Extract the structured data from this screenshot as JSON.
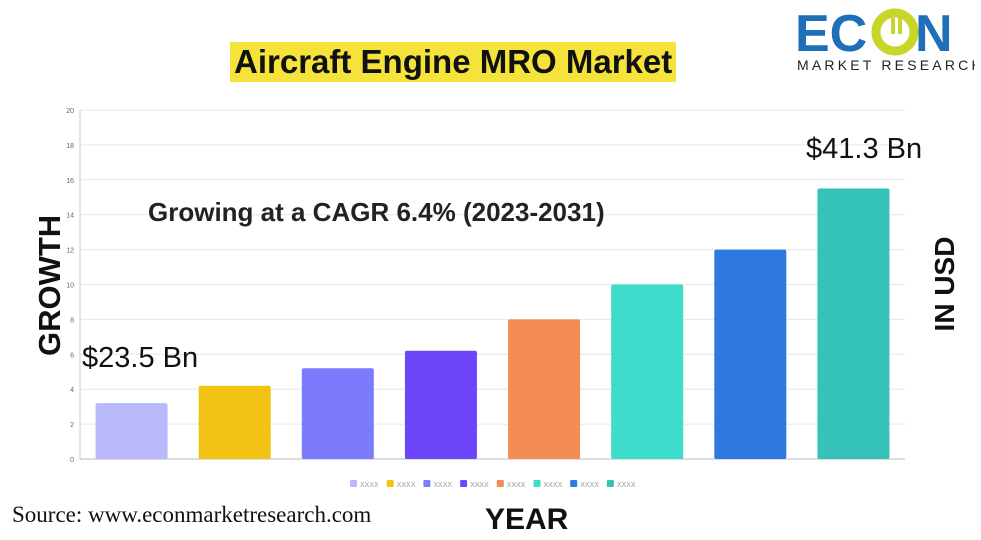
{
  "title": "Aircraft Engine MRO Market",
  "logo": {
    "text": "ECON",
    "subtext": "MARKET RESEARCH",
    "colors": {
      "primary": "#1e6fb8",
      "accent": "#c8d62b"
    }
  },
  "annotations": {
    "cagr": "Growing at a CAGR 6.4% (2023-2031)",
    "start_value": "$23.5 Bn",
    "end_value": "$41.3 Bn"
  },
  "source": "Source: www.econmarketresearch.com",
  "chart_data": {
    "type": "bar",
    "xlabel": "YEAR",
    "ylabel": "GROWTH",
    "unit_label": "IN USD",
    "ylim": [
      0,
      20
    ],
    "yticks": [
      0,
      2,
      4,
      6,
      8,
      10,
      12,
      14,
      16,
      18,
      20
    ],
    "grid": true,
    "legend": "bottom",
    "categories": [
      "XXXX",
      "XXXX",
      "XXXX",
      "XXXX",
      "XXXX",
      "XXXX",
      "XXXX",
      "XXXX"
    ],
    "values": [
      3.2,
      4.2,
      5.2,
      6.2,
      8,
      10,
      12,
      15.5
    ],
    "colors": [
      "#b8b8fb",
      "#f2c314",
      "#7b7bfb",
      "#6d45fb",
      "#f48c55",
      "#3ddccb",
      "#2f78e0",
      "#35c2b8"
    ]
  }
}
